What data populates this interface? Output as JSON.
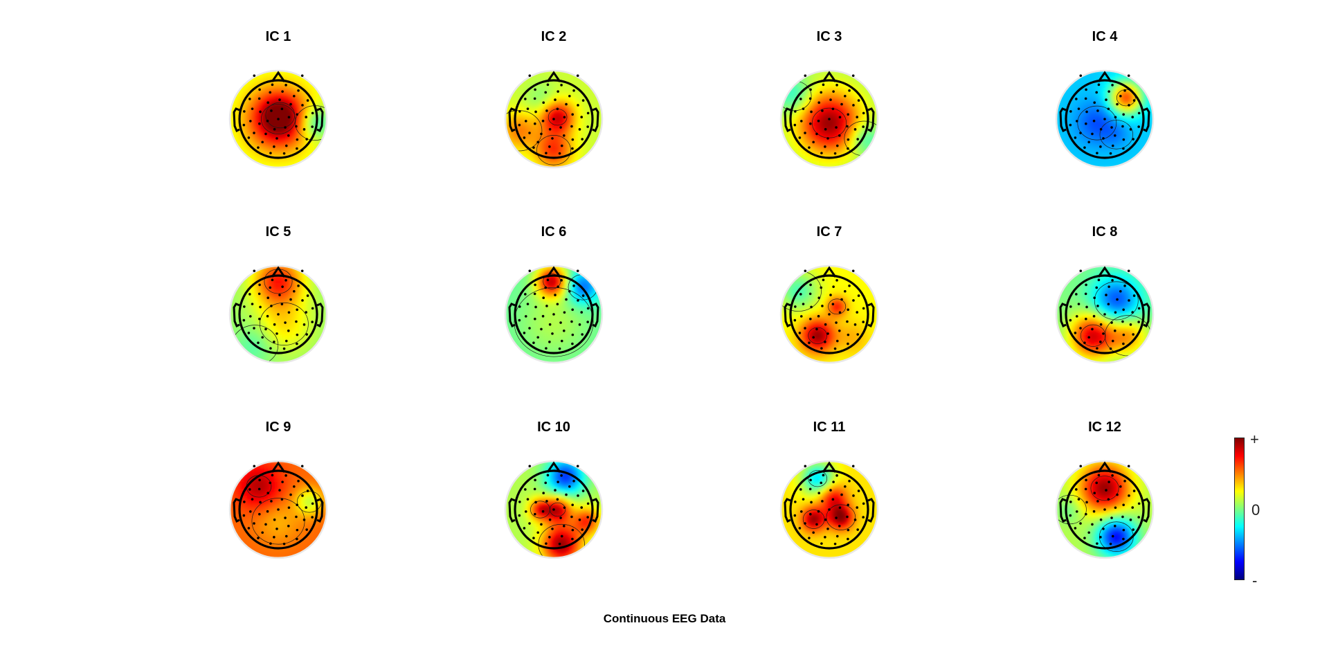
{
  "figure": {
    "caption": "Continuous EEG Data",
    "colorbar": {
      "max_label": "+",
      "mid_label": "0",
      "min_label": "-",
      "colors": [
        "#00007f",
        "#0000ff",
        "#007fff",
        "#00ffff",
        "#7fff7f",
        "#ffff00",
        "#ff7f00",
        "#ff0000",
        "#7f0000"
      ]
    }
  },
  "components": [
    {
      "title": "IC 1",
      "base": 0.18,
      "blobs": [
        [
          0.0,
          0.0,
          0.55,
          0.85
        ],
        [
          0.05,
          -0.1,
          0.3,
          0.2
        ],
        [
          0.95,
          0.1,
          0.3,
          -0.4
        ]
      ]
    },
    {
      "title": "IC 2",
      "base": 0.15,
      "blobs": [
        [
          0.1,
          -0.05,
          0.3,
          0.7
        ],
        [
          0.0,
          0.8,
          0.35,
          0.5
        ],
        [
          -0.9,
          0.3,
          0.35,
          0.35
        ],
        [
          -0.3,
          -0.5,
          0.3,
          -0.15
        ]
      ]
    },
    {
      "title": "IC 3",
      "base": 0.1,
      "blobs": [
        [
          0.0,
          0.1,
          0.55,
          0.85
        ],
        [
          -0.9,
          -0.6,
          0.35,
          -0.3
        ],
        [
          0.9,
          0.5,
          0.3,
          -0.3
        ]
      ]
    },
    {
      "title": "IC 4",
      "base": -0.35,
      "blobs": [
        [
          0.55,
          -0.55,
          0.3,
          0.95
        ],
        [
          -0.2,
          0.1,
          0.4,
          -0.25
        ],
        [
          0.3,
          0.4,
          0.25,
          -0.1
        ]
      ]
    },
    {
      "title": "IC 5",
      "base": 0.05,
      "blobs": [
        [
          0.0,
          -0.85,
          0.45,
          0.65
        ],
        [
          0.15,
          0.25,
          0.5,
          0.25
        ],
        [
          -0.6,
          0.8,
          0.35,
          -0.15
        ]
      ]
    },
    {
      "title": "IC 6",
      "base": -0.05,
      "blobs": [
        [
          -0.05,
          -0.85,
          0.28,
          0.9
        ],
        [
          0.75,
          -0.7,
          0.3,
          -0.5
        ],
        [
          0.0,
          0.2,
          0.6,
          0.15
        ]
      ]
    },
    {
      "title": "IC 7",
      "base": 0.25,
      "blobs": [
        [
          -0.3,
          0.55,
          0.3,
          0.7
        ],
        [
          0.2,
          -0.2,
          0.18,
          0.45
        ],
        [
          -0.8,
          -0.6,
          0.35,
          -0.35
        ],
        [
          0.6,
          0.6,
          0.3,
          0.15
        ]
      ]
    },
    {
      "title": "IC 8",
      "base": 0.0,
      "blobs": [
        [
          -0.3,
          0.55,
          0.4,
          0.85
        ],
        [
          0.3,
          -0.35,
          0.45,
          -0.6
        ],
        [
          0.6,
          0.55,
          0.35,
          0.45
        ]
      ]
    },
    {
      "title": "IC 9",
      "base": 0.55,
      "blobs": [
        [
          -0.5,
          -0.6,
          0.4,
          0.35
        ],
        [
          0.8,
          -0.2,
          0.25,
          -0.4
        ],
        [
          0.0,
          0.3,
          0.4,
          -0.15
        ]
      ]
    },
    {
      "title": "IC 10",
      "base": 0.1,
      "blobs": [
        [
          0.1,
          0.0,
          0.25,
          0.75
        ],
        [
          -0.35,
          0.0,
          0.2,
          0.6
        ],
        [
          0.2,
          0.9,
          0.35,
          0.85
        ],
        [
          0.3,
          -0.85,
          0.35,
          -0.75
        ],
        [
          0.85,
          0.3,
          0.25,
          0.55
        ]
      ]
    },
    {
      "title": "IC 11",
      "base": 0.3,
      "blobs": [
        [
          -0.3,
          -0.8,
          0.3,
          -0.6
        ],
        [
          -0.4,
          0.25,
          0.22,
          0.65
        ],
        [
          0.3,
          0.2,
          0.22,
          0.7
        ],
        [
          0.1,
          -0.3,
          0.25,
          0.5
        ]
      ]
    },
    {
      "title": "IC 12",
      "base": 0.1,
      "blobs": [
        [
          0.0,
          -0.55,
          0.45,
          0.85
        ],
        [
          0.3,
          0.7,
          0.35,
          -0.85
        ],
        [
          -0.9,
          0.0,
          0.25,
          -0.15
        ]
      ]
    }
  ]
}
